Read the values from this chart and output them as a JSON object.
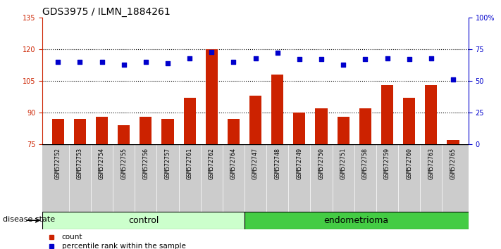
{
  "title": "GDS3975 / ILMN_1884261",
  "samples": [
    "GSM572752",
    "GSM572753",
    "GSM572754",
    "GSM572755",
    "GSM572756",
    "GSM572757",
    "GSM572761",
    "GSM572762",
    "GSM572764",
    "GSM572747",
    "GSM572748",
    "GSM572749",
    "GSM572750",
    "GSM572751",
    "GSM572758",
    "GSM572759",
    "GSM572760",
    "GSM572763",
    "GSM572765"
  ],
  "bar_values": [
    87,
    87,
    88,
    84,
    88,
    87,
    97,
    120,
    87,
    98,
    108,
    90,
    92,
    88,
    92,
    103,
    97,
    103,
    77
  ],
  "dot_values": [
    65,
    65,
    65,
    63,
    65,
    64,
    68,
    73,
    65,
    68,
    72,
    67,
    67,
    63,
    67,
    68,
    67,
    68,
    51
  ],
  "ylim_left": [
    75,
    135
  ],
  "ylim_right": [
    0,
    100
  ],
  "yticks_left": [
    75,
    90,
    105,
    120,
    135
  ],
  "yticks_right": [
    0,
    25,
    50,
    75,
    100
  ],
  "ytick_labels_right": [
    "0",
    "25",
    "50",
    "75",
    "100%"
  ],
  "control_count": 9,
  "endometrioma_count": 10,
  "bar_color": "#cc2200",
  "dot_color": "#0000cc",
  "control_bg": "#ccffcc",
  "endometrioma_bg": "#44cc44",
  "xtick_bg": "#cccccc",
  "group_label_fontsize": 9,
  "disease_state_label": "disease state",
  "legend_count_label": "count",
  "legend_pct_label": "percentile rank within the sample",
  "bar_bottom": 75,
  "hline_values": [
    90,
    105,
    120
  ],
  "title_fontsize": 10,
  "tick_fontsize": 7,
  "sample_fontsize": 6
}
